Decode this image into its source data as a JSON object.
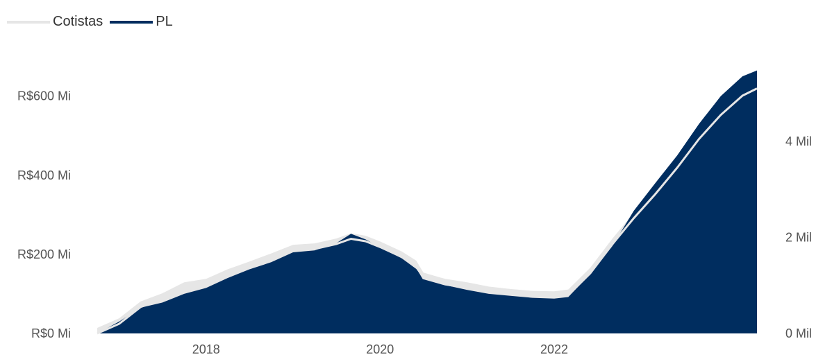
{
  "chart_data": {
    "type": "area",
    "legend_position": "top-left",
    "grid": false,
    "legend": [
      {
        "name": "Cotistas",
        "color": "#e6e6e6"
      },
      {
        "name": "PL",
        "color": "#002d5f"
      }
    ],
    "x_ticks": [
      "2018",
      "2020",
      "2022"
    ],
    "y_left": {
      "ticks": [
        "R$0 Mi",
        "R$200 Mi",
        "R$400 Mi",
        "R$600 Mi"
      ],
      "tick_values": [
        0,
        200,
        400,
        600
      ],
      "range": [
        0,
        680
      ]
    },
    "y_right": {
      "ticks": [
        "0 Mil",
        "2 Mil",
        "4 Mil"
      ],
      "tick_values": [
        0,
        2,
        4
      ],
      "range": [
        0,
        5.6
      ]
    },
    "series": [
      {
        "name": "PL",
        "axis": "left",
        "unit": "R$ Mi",
        "points": [
          [
            "2016-10",
            0
          ],
          [
            "2017-01",
            30
          ],
          [
            "2017-04",
            65
          ],
          [
            "2017-07",
            78
          ],
          [
            "2017-10",
            100
          ],
          [
            "2018-01",
            115
          ],
          [
            "2018-04",
            140
          ],
          [
            "2018-07",
            162
          ],
          [
            "2018-10",
            180
          ],
          [
            "2019-01",
            205
          ],
          [
            "2019-04",
            210
          ],
          [
            "2019-07",
            228
          ],
          [
            "2019-09",
            252
          ],
          [
            "2019-11",
            238
          ],
          [
            "2020-01",
            218
          ],
          [
            "2020-04",
            190
          ],
          [
            "2020-06",
            163
          ],
          [
            "2020-07",
            138
          ],
          [
            "2020-10",
            122
          ],
          [
            "2021-01",
            110
          ],
          [
            "2021-04",
            100
          ],
          [
            "2021-07",
            95
          ],
          [
            "2021-10",
            90
          ],
          [
            "2022-01",
            88
          ],
          [
            "2022-03",
            92
          ],
          [
            "2022-06",
            150
          ],
          [
            "2022-09",
            220
          ],
          [
            "2022-12",
            310
          ],
          [
            "2023-03",
            380
          ],
          [
            "2023-06",
            450
          ],
          [
            "2023-09",
            530
          ],
          [
            "2023-12",
            600
          ],
          [
            "2024-03",
            650
          ],
          [
            "2024-05",
            665
          ]
        ]
      },
      {
        "name": "Cotistas",
        "axis": "right",
        "unit": "Mil",
        "points": [
          [
            "2016-10",
            0
          ],
          [
            "2017-01",
            0.2
          ],
          [
            "2017-04",
            0.55
          ],
          [
            "2017-07",
            0.72
          ],
          [
            "2017-10",
            0.95
          ],
          [
            "2018-01",
            1.02
          ],
          [
            "2018-04",
            1.22
          ],
          [
            "2018-07",
            1.38
          ],
          [
            "2018-10",
            1.55
          ],
          [
            "2019-01",
            1.73
          ],
          [
            "2019-04",
            1.76
          ],
          [
            "2019-07",
            1.86
          ],
          [
            "2019-09",
            1.97
          ],
          [
            "2019-11",
            1.92
          ],
          [
            "2020-01",
            1.8
          ],
          [
            "2020-04",
            1.59
          ],
          [
            "2020-06",
            1.4
          ],
          [
            "2020-07",
            1.15
          ],
          [
            "2020-10",
            1.02
          ],
          [
            "2021-01",
            0.95
          ],
          [
            "2021-04",
            0.86
          ],
          [
            "2021-07",
            0.81
          ],
          [
            "2021-10",
            0.77
          ],
          [
            "2022-01",
            0.76
          ],
          [
            "2022-03",
            0.8
          ],
          [
            "2022-06",
            1.25
          ],
          [
            "2022-09",
            1.85
          ],
          [
            "2022-12",
            2.4
          ],
          [
            "2023-03",
            2.9
          ],
          [
            "2023-06",
            3.45
          ],
          [
            "2023-09",
            4.05
          ],
          [
            "2023-12",
            4.55
          ],
          [
            "2024-03",
            4.95
          ],
          [
            "2024-05",
            5.1
          ]
        ]
      }
    ]
  }
}
